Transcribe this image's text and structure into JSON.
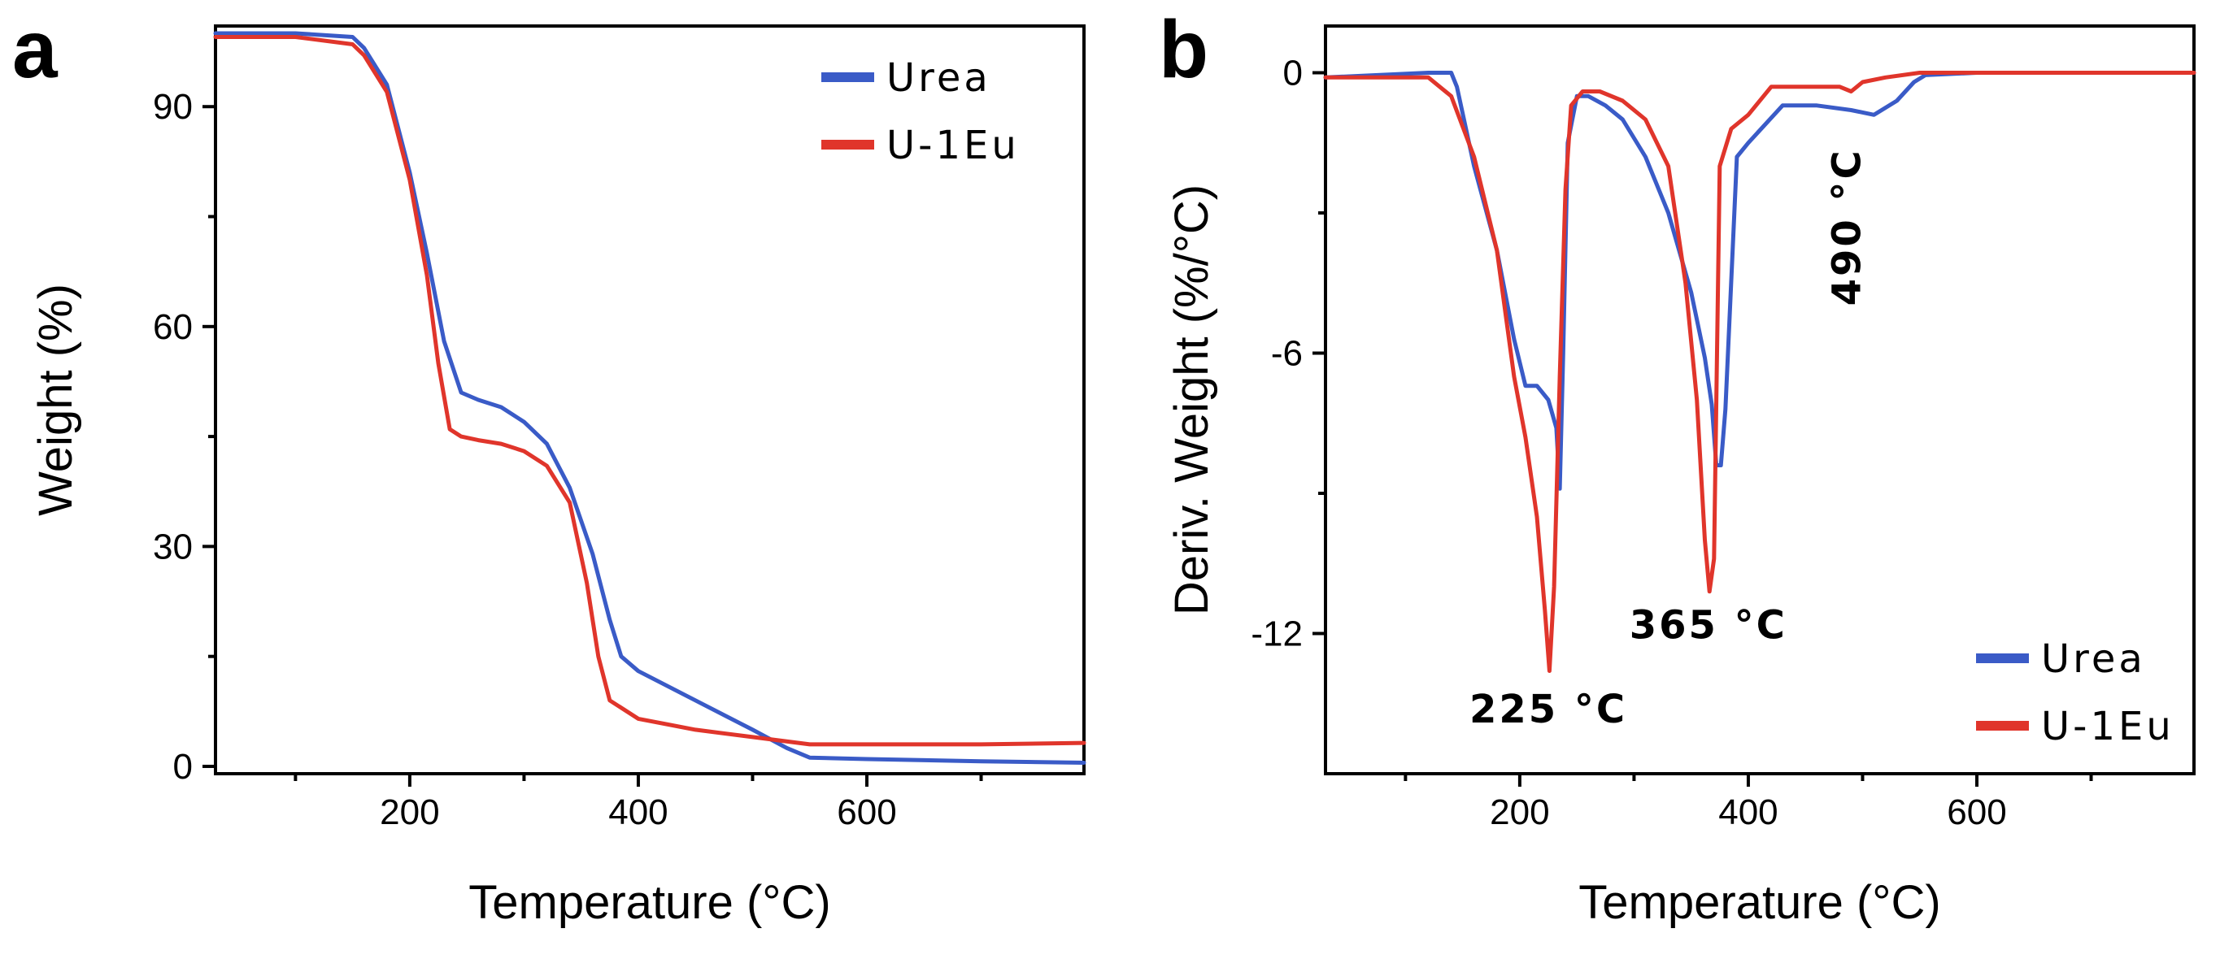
{
  "chart_data": [
    {
      "id": "a",
      "type": "line",
      "panel_label": "a",
      "xlabel": "Temperature (°C)",
      "ylabel": "Weight (%)",
      "xlim": [
        30,
        790
      ],
      "ylim": [
        -1,
        101
      ],
      "xticks": [
        200,
        400,
        600
      ],
      "xticks_minor": [
        100,
        300,
        500,
        700
      ],
      "yticks": [
        0,
        30,
        60,
        90
      ],
      "yticks_minor": [
        15,
        45,
        75
      ],
      "legend_position": "top-right",
      "series": [
        {
          "name": "Urea",
          "color": "#3a5bc7",
          "x": [
            30,
            100,
            150,
            160,
            180,
            200,
            215,
            230,
            245,
            260,
            280,
            300,
            320,
            340,
            360,
            375,
            385,
            400,
            450,
            500,
            530,
            550,
            600,
            700,
            790
          ],
          "y": [
            100,
            100,
            99.5,
            98,
            93,
            81,
            70,
            58,
            51,
            50,
            49,
            47,
            44,
            38,
            29,
            20,
            15,
            13,
            9,
            5,
            2.5,
            1.2,
            1,
            0.7,
            0.5
          ]
        },
        {
          "name": "U-1Eu",
          "color": "#e0352b",
          "x": [
            30,
            100,
            150,
            160,
            180,
            200,
            215,
            225,
            235,
            245,
            260,
            280,
            300,
            320,
            340,
            355,
            365,
            375,
            400,
            450,
            500,
            550,
            600,
            700,
            790
          ],
          "y": [
            99.5,
            99.5,
            98.5,
            97,
            92,
            80,
            67,
            55,
            46,
            45,
            44.5,
            44,
            43,
            41,
            36,
            25,
            15,
            9,
            6.5,
            5,
            4,
            3,
            3,
            3,
            3.2
          ]
        }
      ]
    },
    {
      "id": "b",
      "type": "line",
      "panel_label": "b",
      "xlabel": "Temperature (°C)",
      "ylabel": "Deriv. Weight (%/°C)",
      "xlim": [
        30,
        790
      ],
      "ylim": [
        -15,
        1
      ],
      "xticks": [
        200,
        400,
        600
      ],
      "xticks_minor": [
        100,
        300,
        500,
        700
      ],
      "yticks": [
        0,
        -6,
        -12
      ],
      "yticks_minor": [
        -3,
        -9
      ],
      "legend_position": "bottom-right",
      "annotations": [
        {
          "text": "225 °C",
          "x": 225,
          "y": -13.9,
          "rotate": 0
        },
        {
          "text": "365 °C",
          "x": 365,
          "y": -12.1,
          "rotate": 0
        },
        {
          "text": "490 °C",
          "x": 498,
          "y": -3.3,
          "rotate": -90
        }
      ],
      "series": [
        {
          "name": "Urea",
          "color": "#3a5bc7",
          "x": [
            30,
            120,
            140,
            145,
            160,
            180,
            195,
            205,
            215,
            225,
            232,
            235,
            238,
            242,
            250,
            260,
            275,
            290,
            310,
            330,
            350,
            362,
            368,
            372,
            376,
            380,
            390,
            400,
            430,
            460,
            490,
            510,
            530,
            545,
            555,
            600,
            700,
            790
          ],
          "y": [
            -0.1,
            0,
            0,
            -0.3,
            -2,
            -3.8,
            -5.7,
            -6.7,
            -6.7,
            -7,
            -7.6,
            -8.9,
            -6,
            -1.5,
            -0.5,
            -0.5,
            -0.7,
            -1,
            -1.8,
            -3,
            -4.7,
            -6.1,
            -7.1,
            -8.4,
            -8.4,
            -7.2,
            -1.8,
            -1.5,
            -0.7,
            -0.7,
            -0.8,
            -0.9,
            -0.6,
            -0.2,
            -0.05,
            0,
            0,
            0
          ]
        },
        {
          "name": "U-1Eu",
          "color": "#e0352b",
          "x": [
            30,
            120,
            140,
            160,
            180,
            195,
            205,
            215,
            222,
            226,
            230,
            235,
            240,
            245,
            255,
            270,
            290,
            310,
            330,
            345,
            355,
            362,
            366,
            370,
            375,
            385,
            400,
            420,
            460,
            480,
            490,
            500,
            520,
            550,
            600,
            700,
            790
          ],
          "y": [
            -0.1,
            -0.1,
            -0.5,
            -1.8,
            -3.8,
            -6.5,
            -7.8,
            -9.5,
            -11.5,
            -12.8,
            -11,
            -6.5,
            -2.5,
            -0.7,
            -0.4,
            -0.4,
            -0.6,
            -1,
            -2,
            -4.5,
            -7,
            -10,
            -11.1,
            -10.4,
            -2,
            -1.2,
            -0.9,
            -0.3,
            -0.3,
            -0.3,
            -0.4,
            -0.2,
            -0.1,
            0,
            0,
            0,
            0
          ]
        }
      ]
    }
  ]
}
